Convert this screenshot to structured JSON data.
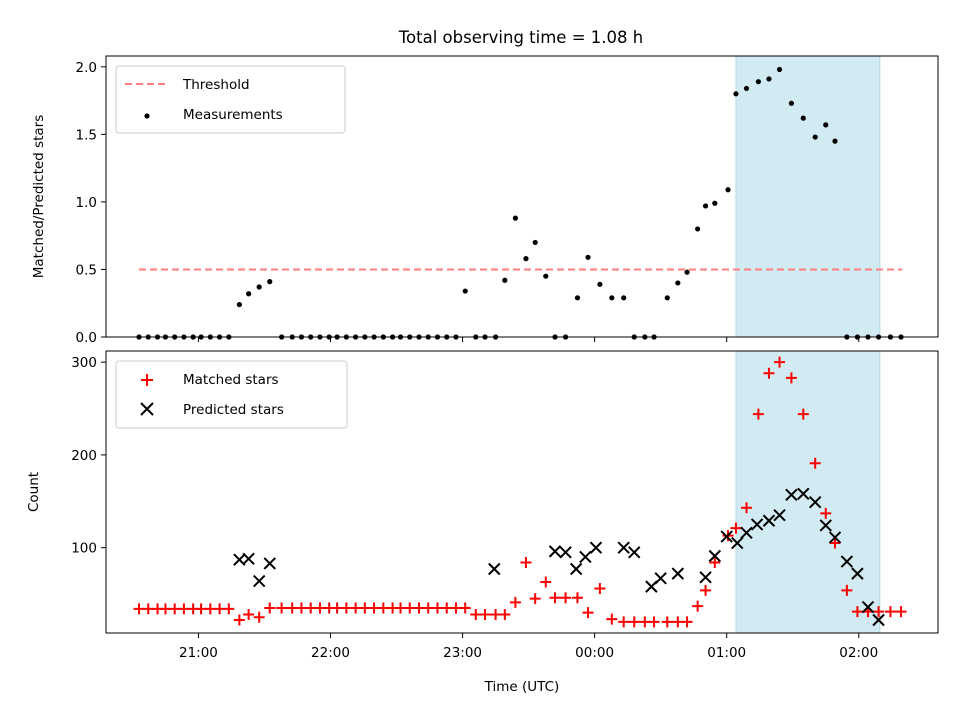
{
  "chart_data": {
    "type": "scatter",
    "title": "Total observing time = 1.08 h",
    "xlabel": "Time (UTC)",
    "x_ticks": [
      "21:00",
      "22:00",
      "23:00",
      "00:00",
      "01:00",
      "02:00"
    ],
    "x_tick_hours": [
      21,
      22,
      23,
      24,
      25,
      26
    ],
    "xlim_hours": [
      20.3,
      26.6
    ],
    "shaded_region_hours": [
      25.07,
      26.16
    ],
    "colors": {
      "shade": "#add8e6",
      "threshold": "#ff7f7f",
      "measurements": "#000000",
      "matched": "#ff0000",
      "predicted": "#000000"
    },
    "panels": [
      {
        "ylabel": "Matched/Predicted stars",
        "ylim": [
          0,
          2.08
        ],
        "yticks": [
          0.0,
          0.5,
          1.0,
          1.5,
          2.0
        ],
        "yticklabels": [
          "0.0",
          "0.5",
          "1.0",
          "1.5",
          "2.0"
        ],
        "legend": [
          "Threshold",
          "Measurements"
        ],
        "threshold": {
          "name": "Threshold",
          "y": 0.5,
          "x": [
            20.55,
            26.33
          ]
        },
        "measurements": {
          "name": "Measurements",
          "x": [
            20.55,
            20.62,
            20.69,
            20.75,
            20.82,
            20.89,
            20.96,
            21.02,
            21.09,
            21.16,
            21.23,
            21.31,
            21.38,
            21.46,
            21.54,
            21.63,
            21.71,
            21.78,
            21.85,
            21.92,
            21.99,
            22.05,
            22.12,
            22.19,
            22.26,
            22.33,
            22.4,
            22.47,
            22.53,
            22.6,
            22.67,
            22.74,
            22.81,
            22.88,
            22.95,
            23.02,
            23.1,
            23.17,
            23.25,
            23.32,
            23.4,
            23.48,
            23.55,
            23.63,
            23.7,
            23.78,
            23.87,
            23.95,
            24.04,
            24.13,
            24.22,
            24.3,
            24.38,
            24.45,
            24.55,
            24.63,
            24.7,
            24.78,
            24.84,
            24.91,
            25.01,
            25.07,
            25.15,
            25.24,
            25.32,
            25.4,
            25.49,
            25.58,
            25.67,
            25.75,
            25.82,
            25.91,
            25.99,
            26.07,
            26.15,
            26.24,
            26.32
          ],
          "y": [
            0,
            0,
            0,
            0,
            0,
            0,
            0,
            0,
            0,
            0,
            0,
            0.24,
            0.32,
            0.37,
            0.41,
            0,
            0,
            0,
            0,
            0,
            0,
            0,
            0,
            0,
            0,
            0,
            0,
            0,
            0,
            0,
            0,
            0,
            0,
            0,
            0,
            0.34,
            0,
            0,
            0,
            0.42,
            0.88,
            0.58,
            0.7,
            0.45,
            0,
            0,
            0.29,
            0.59,
            0.39,
            0.29,
            0.29,
            0,
            0,
            0,
            0.29,
            0.4,
            0.48,
            0.8,
            0.97,
            0.99,
            1.09,
            1.8,
            1.84,
            1.89,
            1.91,
            1.98,
            1.73,
            1.62,
            1.48,
            1.57,
            1.45,
            0,
            0,
            0,
            0,
            0,
            0
          ],
          "note": ""
        }
      },
      {
        "ylabel": "Count",
        "ylim": [
          8,
          312
        ],
        "yticks": [
          100,
          200,
          300
        ],
        "yticklabels": [
          "100",
          "200",
          "300"
        ],
        "legend": [
          "Matched stars",
          "Predicted stars"
        ],
        "matched": {
          "name": "Matched stars",
          "x": [
            20.55,
            20.62,
            20.69,
            20.75,
            20.82,
            20.89,
            20.96,
            21.02,
            21.09,
            21.16,
            21.23,
            21.31,
            21.38,
            21.46,
            21.54,
            21.63,
            21.71,
            21.78,
            21.85,
            21.92,
            21.99,
            22.05,
            22.12,
            22.19,
            22.26,
            22.33,
            22.4,
            22.47,
            22.53,
            22.6,
            22.67,
            22.74,
            22.81,
            22.88,
            22.95,
            23.02,
            23.1,
            23.17,
            23.25,
            23.32,
            23.4,
            23.48,
            23.55,
            23.63,
            23.7,
            23.78,
            23.87,
            23.95,
            24.04,
            24.13,
            24.22,
            24.3,
            24.38,
            24.45,
            24.55,
            24.63,
            24.7,
            24.78,
            24.84,
            24.91,
            25.01,
            25.07,
            25.15,
            25.24,
            25.32,
            25.4,
            25.49,
            25.58,
            25.67,
            25.75,
            25.82,
            25.91,
            25.99,
            26.07,
            26.15,
            26.24,
            26.32
          ],
          "y": [
            34,
            34,
            34,
            34,
            34,
            34,
            34,
            34,
            34,
            34,
            34,
            22,
            28,
            25,
            35,
            35,
            35,
            35,
            35,
            35,
            35,
            35,
            35,
            35,
            35,
            35,
            35,
            35,
            35,
            35,
            35,
            35,
            35,
            35,
            35,
            35,
            28,
            28,
            28,
            28,
            41,
            84,
            45,
            63,
            46,
            46,
            46,
            30,
            56,
            23,
            20,
            20,
            20,
            20,
            20,
            20,
            20,
            37,
            54,
            84,
            113,
            121,
            143,
            244,
            288,
            300,
            283,
            244,
            191,
            137,
            105,
            54,
            31,
            31,
            31,
            31,
            31
          ]
        },
        "predicted": {
          "name": "Predicted stars",
          "x": [
            21.31,
            21.38,
            21.46,
            21.54,
            23.24,
            23.7,
            23.78,
            23.86,
            23.93,
            24.01,
            24.22,
            24.3,
            24.43,
            24.5,
            24.63,
            24.84,
            24.91,
            25.0,
            25.08,
            25.15,
            25.23,
            25.32,
            25.4,
            25.49,
            25.58,
            25.67,
            25.75,
            25.82,
            25.91,
            25.99,
            26.07,
            26.15
          ],
          "y": [
            87,
            88,
            64,
            83,
            77,
            96,
            95,
            77,
            90,
            100,
            100,
            95,
            58,
            67,
            72,
            68,
            91,
            112,
            105,
            116,
            125,
            129,
            135,
            157,
            158,
            149,
            124,
            111,
            85,
            72,
            36,
            22
          ]
        }
      }
    ]
  }
}
